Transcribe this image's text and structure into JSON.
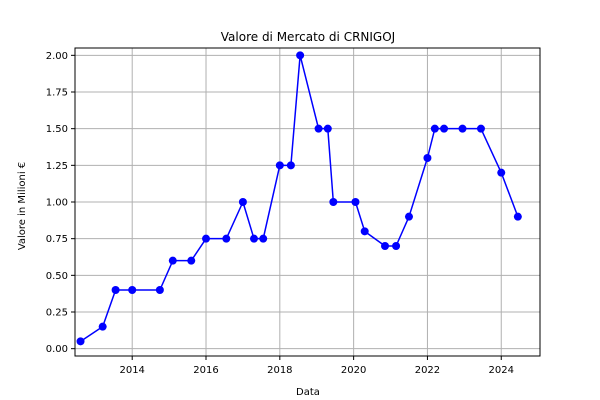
{
  "chart_data": {
    "type": "line",
    "title": "Valore di Mercato di CRNIGOJ",
    "xlabel": "Data",
    "ylabel": "Valore in Milioni €",
    "x_ticks": [
      "2014",
      "2016",
      "2018",
      "2020",
      "2022",
      "2024"
    ],
    "y_ticks": [
      "0.00",
      "0.25",
      "0.50",
      "0.75",
      "1.00",
      "1.25",
      "1.50",
      "1.75",
      "2.00"
    ],
    "xlim": [
      2012.45,
      2025.05
    ],
    "ylim": [
      -0.05,
      2.05
    ],
    "grid": true,
    "line_color": "#0000ff",
    "series": [
      {
        "x": [
          2012.6,
          2013.2,
          2013.55,
          2014.0,
          2014.75,
          2015.1,
          2015.6,
          2016.0,
          2016.55,
          2017.0,
          2017.3,
          2017.55,
          2018.0,
          2018.3,
          2018.55,
          2019.05,
          2019.3,
          2019.45,
          2020.05,
          2020.3,
          2020.85,
          2021.15,
          2021.5,
          2022.0,
          2022.2,
          2022.45,
          2022.95,
          2023.45,
          2024.0,
          2024.45
        ],
        "y": [
          0.05,
          0.15,
          0.4,
          0.4,
          0.4,
          0.6,
          0.6,
          0.75,
          0.75,
          1.0,
          0.75,
          0.75,
          1.25,
          1.25,
          2.0,
          1.5,
          1.5,
          1.0,
          1.0,
          0.8,
          0.7,
          0.7,
          0.9,
          1.3,
          1.5,
          1.5,
          1.5,
          1.5,
          1.2,
          0.9
        ]
      }
    ]
  }
}
